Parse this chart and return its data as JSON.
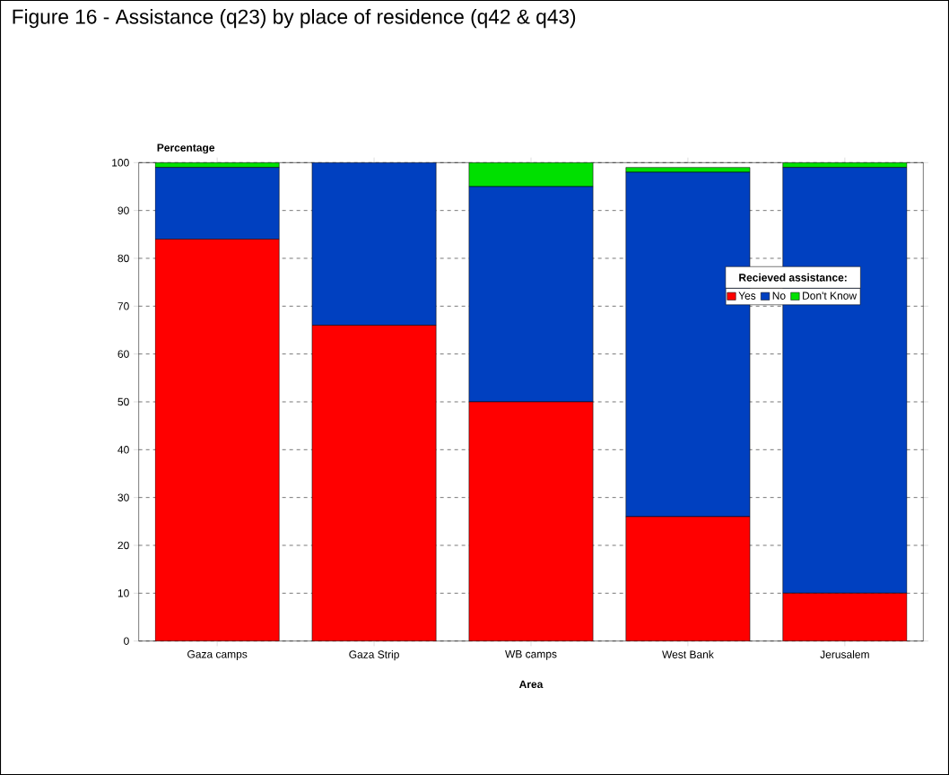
{
  "chart_data": {
    "type": "bar",
    "title": "Figure 16 - Assistance (q23) by place of residence (q42 & q43)",
    "xlabel": "Area",
    "ylabel": "Percentage",
    "legend_title": "Recieved assistance:",
    "categories": [
      "Gaza camps",
      "Gaza Strip",
      "WB camps",
      "West Bank",
      "Jerusalem"
    ],
    "series": [
      {
        "name": "Yes",
        "color": "#ff0000",
        "values": [
          84,
          66,
          50,
          26,
          10
        ]
      },
      {
        "name": "No",
        "color": "#0040c0",
        "values": [
          15,
          34,
          45,
          72,
          89
        ]
      },
      {
        "name": "Don't Know",
        "color": "#00e000",
        "values": [
          1,
          0,
          5,
          1,
          1
        ]
      }
    ],
    "stacked": true,
    "ylim": [
      0,
      100
    ],
    "yticks": [
      0,
      10,
      20,
      30,
      40,
      50,
      60,
      70,
      80,
      90,
      100
    ],
    "grid": "y",
    "legend": "right"
  }
}
